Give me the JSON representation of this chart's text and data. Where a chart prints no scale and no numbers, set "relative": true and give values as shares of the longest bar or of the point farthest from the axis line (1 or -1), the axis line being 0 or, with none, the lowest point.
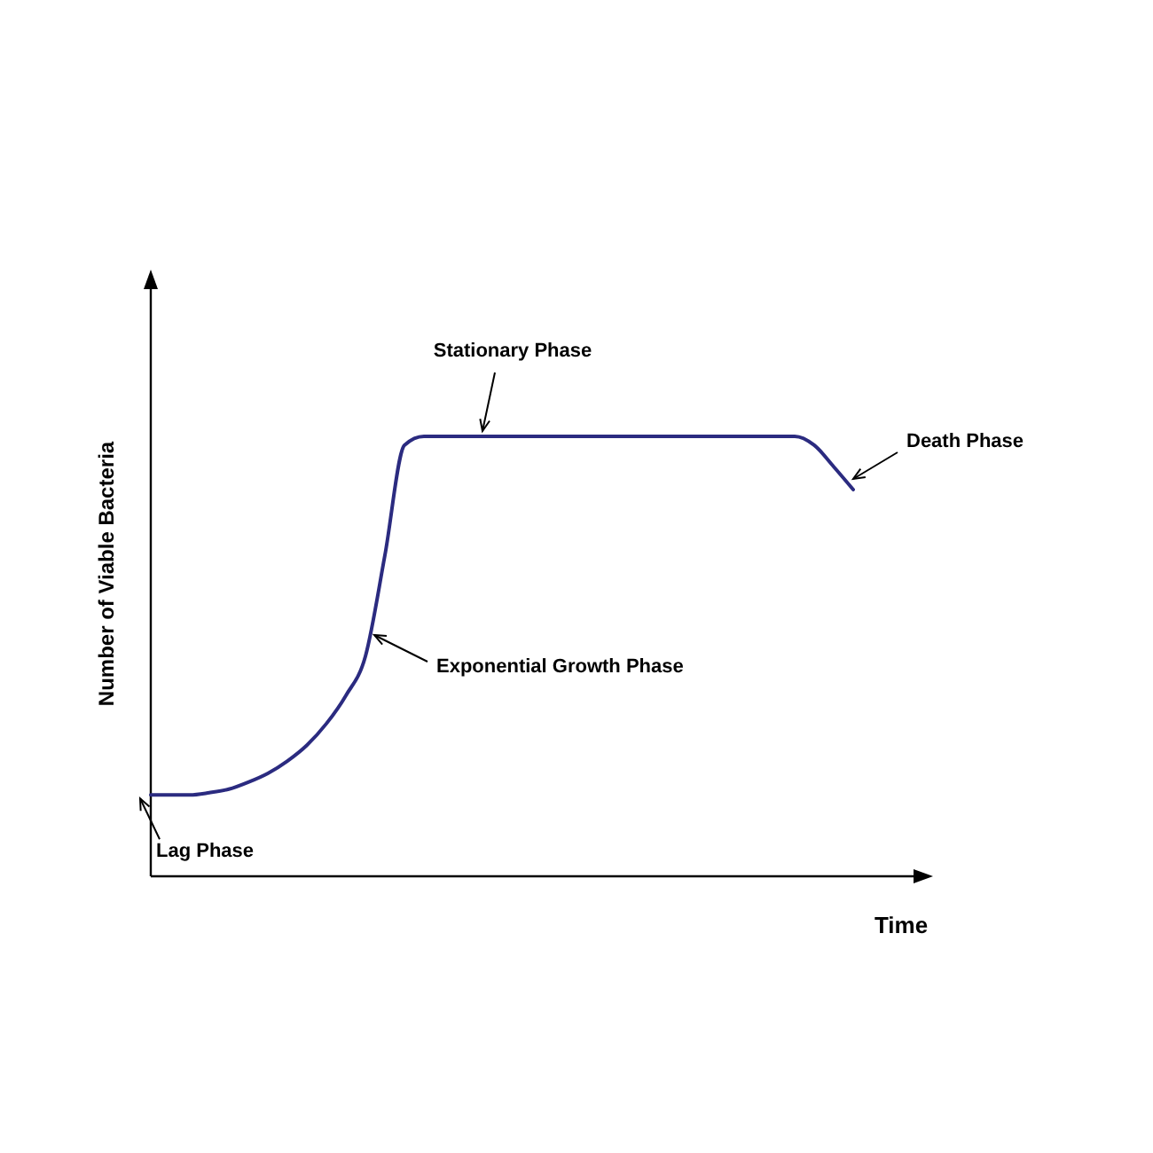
{
  "chart_data": {
    "type": "line",
    "relative": true,
    "xlabel": "Time",
    "ylabel": "Number of Viable Bacteria",
    "categories": [
      null,
      null,
      null,
      null,
      null,
      null,
      null,
      null,
      null,
      null,
      null,
      null,
      null,
      null,
      null,
      null,
      null,
      null,
      null,
      null,
      null,
      null,
      null,
      null,
      null,
      null,
      null,
      null,
      null,
      null,
      null,
      null,
      null,
      null,
      null,
      null,
      null
    ],
    "series": [
      {
        "color": "#2b2b80",
        "values": [
          0.185,
          0.185,
          0.185,
          0.19,
          0.198,
          0.214,
          0.234,
          0.262,
          0.298,
          0.347,
          0.411,
          0.5,
          0.73,
          0.98,
          1,
          1,
          1,
          1,
          1,
          1,
          1,
          1,
          1,
          1,
          1,
          1,
          1,
          1,
          1,
          1,
          1,
          1,
          1,
          1,
          0.98,
          0.931,
          0.879
        ]
      }
    ],
    "annotations": [
      "Stationary Phase",
      "Death Phase",
      "Exponential Growth Phase",
      "Lag Phase"
    ],
    "grid": false,
    "marker": "none",
    "line_style": "solid"
  }
}
